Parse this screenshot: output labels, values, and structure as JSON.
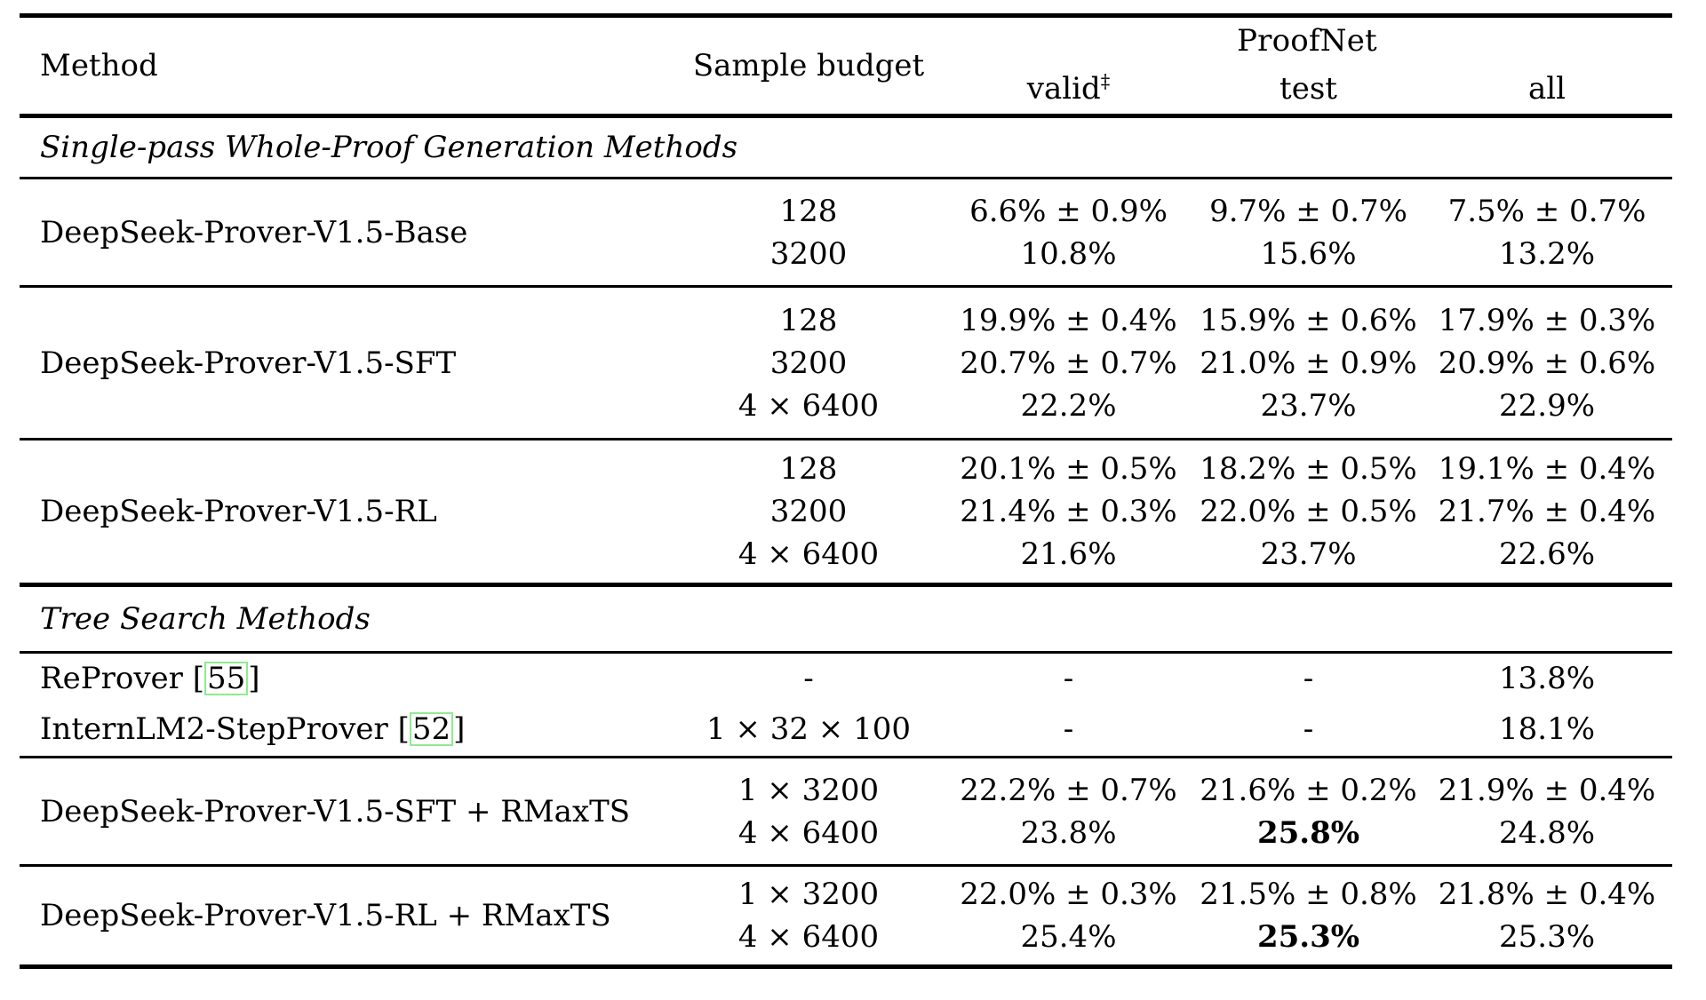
{
  "colors": {
    "citation_border": "#8dec8d",
    "text": "#000000",
    "background": "#ffffff"
  },
  "header": {
    "method": "Method",
    "sample_budget": "Sample budget",
    "group": "ProofNet",
    "valid": "valid",
    "valid_mark": "‡",
    "test": "test",
    "all": "all"
  },
  "sections": {
    "single_pass": "Single-pass Whole-Proof Generation Methods",
    "tree_search": "Tree Search Methods"
  },
  "rows": {
    "base": {
      "method": "DeepSeek-Prover-V1.5-Base",
      "budget": [
        "128",
        "3200"
      ],
      "valid": [
        "6.6% ± 0.9%",
        "10.8%"
      ],
      "test": [
        "9.7% ± 0.7%",
        "15.6%"
      ],
      "all": [
        "7.5% ± 0.7%",
        "13.2%"
      ]
    },
    "sft": {
      "method": "DeepSeek-Prover-V1.5-SFT",
      "budget": [
        "128",
        "3200",
        "4 × 6400"
      ],
      "valid": [
        "19.9% ± 0.4%",
        "20.7% ± 0.7%",
        "22.2%"
      ],
      "test": [
        "15.9% ± 0.6%",
        "21.0% ± 0.9%",
        "23.7%"
      ],
      "all": [
        "17.9% ± 0.3%",
        "20.9% ± 0.6%",
        "22.9%"
      ]
    },
    "rl": {
      "method": "DeepSeek-Prover-V1.5-RL",
      "budget": [
        "128",
        "3200",
        "4 × 6400"
      ],
      "valid": [
        "20.1% ± 0.5%",
        "21.4% ± 0.3%",
        "21.6%"
      ],
      "test": [
        "18.2% ± 0.5%",
        "22.0% ± 0.5%",
        "23.7%"
      ],
      "all": [
        "19.1% ± 0.4%",
        "21.7% ± 0.4%",
        "22.6%"
      ]
    },
    "reprover": {
      "method": "ReProver",
      "cite_open": "[",
      "cite": "55",
      "cite_close": "]",
      "budget": "-",
      "valid": "-",
      "test": "-",
      "all": "13.8%"
    },
    "internlm": {
      "method": "InternLM2-StepProver",
      "cite_open": "[",
      "cite": "52",
      "cite_close": "]",
      "budget": "1 × 32 × 100",
      "valid": "-",
      "test": "-",
      "all": "18.1%"
    },
    "sft_rmaxts": {
      "method": "DeepSeek-Prover-V1.5-SFT + RMaxTS",
      "budget": [
        "1 × 3200",
        "4 × 6400"
      ],
      "valid": [
        "22.2% ± 0.7%",
        "23.8%"
      ],
      "test": [
        "21.6% ± 0.2%",
        "25.8%"
      ],
      "all": [
        "21.9% ± 0.4%",
        "24.8%"
      ]
    },
    "rl_rmaxts": {
      "method": "DeepSeek-Prover-V1.5-RL + RMaxTS",
      "budget": [
        "1 × 3200",
        "4 × 6400"
      ],
      "valid": [
        "22.0% ± 0.3%",
        "25.4%"
      ],
      "test": [
        "21.5% ± 0.8%",
        "25.3%"
      ],
      "all": [
        "21.8% ± 0.4%",
        "25.3%"
      ]
    }
  }
}
